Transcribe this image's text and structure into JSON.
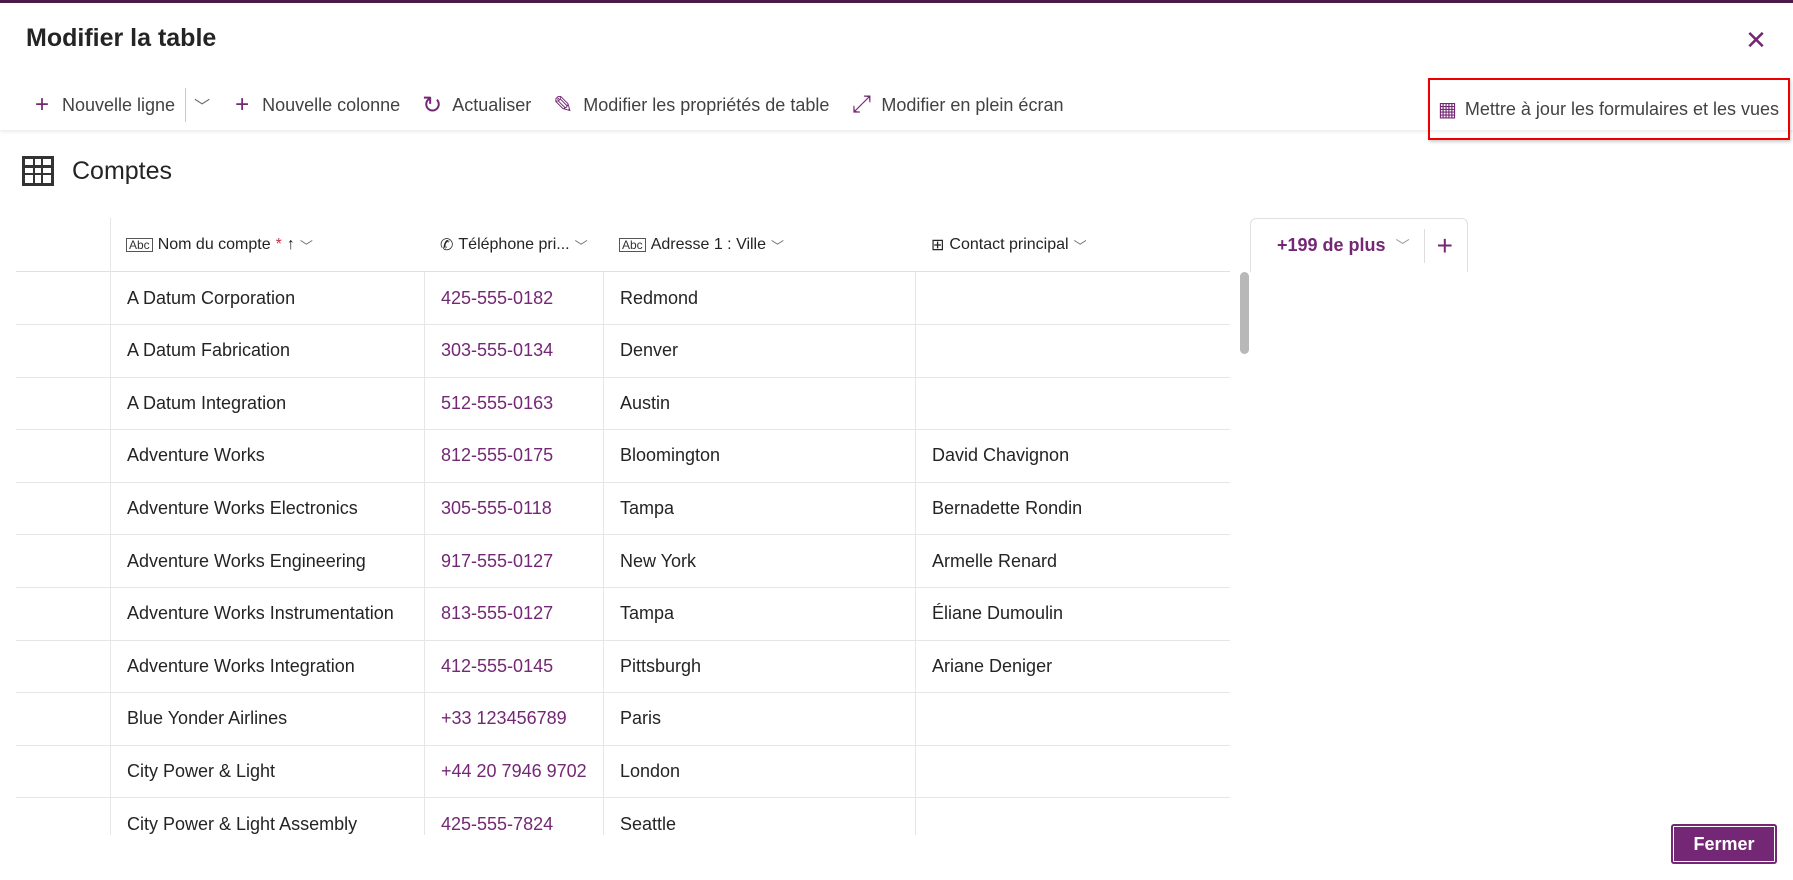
{
  "dialog": {
    "title": "Modifier la table",
    "close_icon": "close-icon"
  },
  "toolbar": {
    "new_row": "Nouvelle ligne",
    "new_column": "Nouvelle colonne",
    "refresh": "Actualiser",
    "edit_properties": "Modifier les propriétés de table",
    "fullscreen": "Modifier en plein écran",
    "update_forms": "Mettre à jour les formulaires et les vues"
  },
  "table": {
    "name": "Comptes"
  },
  "columns": [
    {
      "label": "Nom du compte",
      "required": "*",
      "sort": "↑"
    },
    {
      "label": "Téléphone pri..."
    },
    {
      "label": "Adresse 1 : Ville"
    },
    {
      "label": "Contact principal"
    }
  ],
  "more_columns": "+199 de plus",
  "rows": [
    [
      "A Datum Corporation",
      "425-555-0182",
      "Redmond",
      ""
    ],
    [
      "A Datum Fabrication",
      "303-555-0134",
      "Denver",
      ""
    ],
    [
      "A Datum Integration",
      "512-555-0163",
      "Austin",
      ""
    ],
    [
      "Adventure Works",
      "812-555-0175",
      "Bloomington",
      "David Chavignon"
    ],
    [
      "Adventure Works Electronics",
      "305-555-0118",
      "Tampa",
      "Bernadette Rondin"
    ],
    [
      "Adventure Works Engineering",
      "917-555-0127",
      "New York",
      "Armelle Renard"
    ],
    [
      "Adventure Works Instrumentation",
      "813-555-0127",
      "Tampa",
      "Éliane Dumoulin"
    ],
    [
      "Adventure Works Integration",
      "412-555-0145",
      "Pittsburgh",
      "Ariane Deniger"
    ],
    [
      "Blue Yonder Airlines",
      "+33 123456789",
      "Paris",
      ""
    ],
    [
      "City Power & Light",
      "+44 20 7946 9702",
      "London",
      ""
    ],
    [
      "City Power & Light Assembly",
      "425-555-7824",
      "Seattle",
      ""
    ]
  ],
  "footer": {
    "close_button": "Fermer"
  },
  "colors": {
    "accent": "#742774",
    "highlight_box": "#e00000"
  }
}
